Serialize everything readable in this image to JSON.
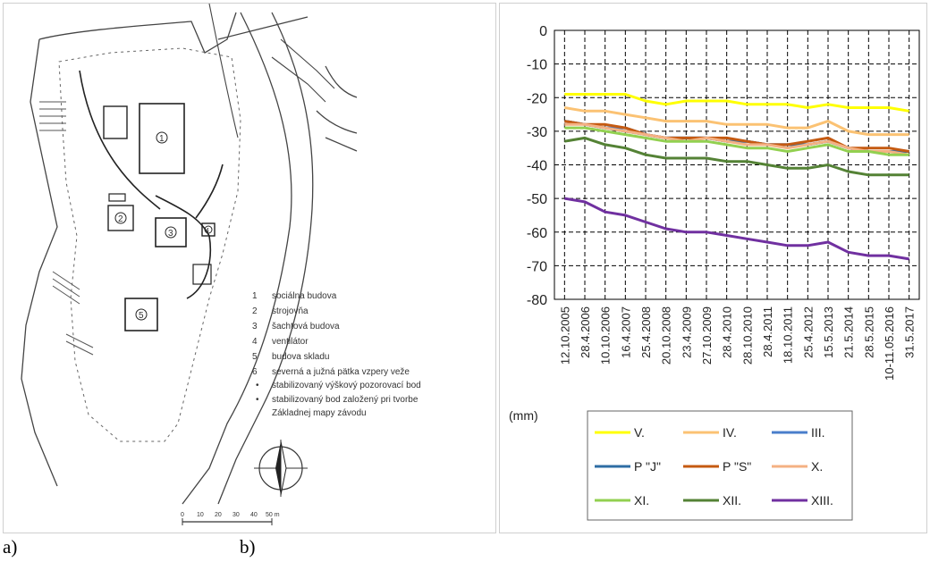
{
  "captions": {
    "a": "a)",
    "b": "b)"
  },
  "map": {
    "building_labels": [
      "1",
      "2",
      "3",
      "4",
      "5"
    ],
    "legend": [
      {
        "marker": "1",
        "text": "sociálna budova"
      },
      {
        "marker": "2",
        "text": "strojovňa"
      },
      {
        "marker": "3",
        "text": "šachtová budova"
      },
      {
        "marker": "4",
        "text": "ventilátor"
      },
      {
        "marker": "5",
        "text": "budova skladu"
      },
      {
        "marker": "6",
        "text": "severná a južná pätka vzpery veže"
      },
      {
        "marker": "•",
        "text": "stabilizovaný výškový pozorovací bod"
      },
      {
        "marker": "•",
        "text": "stabilizovaný bod založený pri tvorbe"
      },
      {
        "marker": "",
        "text": "Základnej mapy závodu"
      }
    ],
    "scale_labels": [
      "0",
      "10",
      "20",
      "30",
      "40",
      "50 m"
    ]
  },
  "chart_data": {
    "type": "line",
    "unit_label": "(mm)",
    "categories": [
      "12.10.2005",
      "28.4.2006",
      "10.10.2006",
      "16.4.2007",
      "25.4.2008",
      "20.10.2008",
      "23.4.2009",
      "27.10.2009",
      "28.4.2010",
      "28.10.2010",
      "28.4.2011",
      "18.10.2011",
      "25.4.2012",
      "15.5.2013",
      "21.5.2014",
      "28.5.2015",
      "10-11.05.2016",
      "31.5.2017"
    ],
    "ylim": [
      -80,
      0
    ],
    "yticks": [
      "0",
      "-10",
      "-20",
      "-30",
      "-40",
      "-50",
      "-60",
      "-70",
      "-80"
    ],
    "grid": true,
    "legend_position": "bottom",
    "series": [
      {
        "name": "V.",
        "color": "#ffff00",
        "values": [
          -19,
          -19,
          -19,
          -19,
          -21,
          -22,
          -21,
          -21,
          -21,
          -22,
          -22,
          -22,
          -23,
          -22,
          -23,
          -23,
          -23,
          -24
        ]
      },
      {
        "name": "IV.",
        "color": "#fbc273",
        "values": [
          -23,
          -24,
          -24,
          -25,
          -26,
          -27,
          -27,
          -27,
          -28,
          -28,
          -28,
          -29,
          -29,
          -27,
          -30,
          -31,
          -31,
          -31
        ]
      },
      {
        "name": "III.",
        "color": "#4a7ecb",
        "values": [
          -27,
          -28,
          -29,
          -29,
          -31,
          -32,
          -32,
          -32,
          -33,
          -33,
          -34,
          -34,
          -34,
          -33,
          -35,
          -36,
          -36,
          -36
        ]
      },
      {
        "name": "P \"J\"",
        "color": "#2e6da4",
        "values": [
          -27,
          -28,
          -29,
          -30,
          -31,
          -32,
          -32,
          -32,
          -33,
          -33,
          -34,
          -34,
          -34,
          -33,
          -35,
          -36,
          -36,
          -36
        ]
      },
      {
        "name": "P \"S\"",
        "color": "#c55a11",
        "values": [
          -27,
          -28,
          -28,
          -29,
          -31,
          -32,
          -32,
          -32,
          -32,
          -33,
          -34,
          -34,
          -33,
          -32,
          -35,
          -35,
          -35,
          -36
        ]
      },
      {
        "name": "X.",
        "color": "#f4b183",
        "values": [
          -28,
          -28,
          -29,
          -30,
          -31,
          -32,
          -33,
          -32,
          -33,
          -34,
          -34,
          -35,
          -34,
          -33,
          -35,
          -36,
          -36,
          -37
        ]
      },
      {
        "name": "XI.",
        "color": "#92d050",
        "values": [
          -29,
          -29,
          -30,
          -31,
          -32,
          -33,
          -33,
          -33,
          -34,
          -35,
          -35,
          -36,
          -35,
          -34,
          -36,
          -36,
          -37,
          -37
        ]
      },
      {
        "name": "XII.",
        "color": "#548235",
        "values": [
          -33,
          -32,
          -34,
          -35,
          -37,
          -38,
          -38,
          -38,
          -39,
          -39,
          -40,
          -41,
          -41,
          -40,
          -42,
          -43,
          -43,
          -43
        ]
      },
      {
        "name": "XIII.",
        "color": "#7030a0",
        "values": [
          -50,
          -51,
          -54,
          -55,
          -57,
          -59,
          -60,
          -60,
          -61,
          -62,
          -63,
          -64,
          -64,
          -63,
          -66,
          -67,
          -67,
          -68
        ]
      }
    ]
  }
}
